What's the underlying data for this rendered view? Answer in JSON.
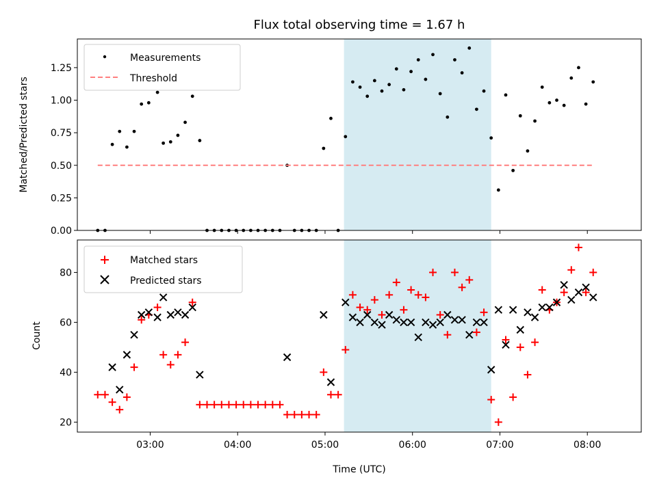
{
  "chart_data": {
    "title": "Flux total observing time = 1.67 h",
    "xlabel": "Time (UTC)",
    "x_ticks": [
      "03:00",
      "04:00",
      "05:00",
      "06:00",
      "07:00",
      "08:00"
    ],
    "x_range": [
      "02:10",
      "08:37"
    ],
    "shaded_interval": {
      "start": "05:13",
      "end": "06:54",
      "color": "#add8e6"
    },
    "panels": [
      {
        "id": "ratio",
        "type": "scatter",
        "ylabel": "Matched/Predicted stars",
        "ylim": [
          0,
          1.47
        ],
        "y_ticks": [
          "0.00",
          "0.25",
          "0.50",
          "0.75",
          "1.00",
          "1.25"
        ],
        "y_tick_values": [
          0,
          0.25,
          0.5,
          0.75,
          1.0,
          1.25
        ],
        "legend_position": "top-left",
        "series": [
          {
            "name": "Measurements",
            "marker": "dot",
            "color": "#000000",
            "points": [
              [
                "02:24",
                0
              ],
              [
                "02:29",
                0
              ],
              [
                "02:34",
                0.66
              ],
              [
                "02:39",
                0.76
              ],
              [
                "02:44",
                0.64
              ],
              [
                "02:49",
                0.76
              ],
              [
                "02:54",
                0.97
              ],
              [
                "02:59",
                0.98
              ],
              [
                "03:05",
                1.06
              ],
              [
                "03:09",
                0.67
              ],
              [
                "03:14",
                0.68
              ],
              [
                "03:19",
                0.73
              ],
              [
                "03:24",
                0.83
              ],
              [
                "03:29",
                1.03
              ],
              [
                "03:34",
                0.69
              ],
              [
                "03:39",
                0
              ],
              [
                "03:44",
                0
              ],
              [
                "03:49",
                0
              ],
              [
                "03:54",
                0
              ],
              [
                "03:59",
                0
              ],
              [
                "04:04",
                0
              ],
              [
                "04:09",
                0
              ],
              [
                "04:14",
                0
              ],
              [
                "04:19",
                0
              ],
              [
                "04:24",
                0
              ],
              [
                "04:29",
                0
              ],
              [
                "04:34",
                0.5
              ],
              [
                "04:39",
                0
              ],
              [
                "04:44",
                0
              ],
              [
                "04:49",
                0
              ],
              [
                "04:54",
                0
              ],
              [
                "04:59",
                0.63
              ],
              [
                "05:04",
                0.86
              ],
              [
                "05:09",
                0
              ],
              [
                "05:14",
                0.72
              ],
              [
                "05:19",
                1.14
              ],
              [
                "05:24",
                1.1
              ],
              [
                "05:29",
                1.03
              ],
              [
                "05:34",
                1.15
              ],
              [
                "05:39",
                1.07
              ],
              [
                "05:44",
                1.12
              ],
              [
                "05:49",
                1.24
              ],
              [
                "05:54",
                1.08
              ],
              [
                "05:59",
                1.22
              ],
              [
                "06:04",
                1.31
              ],
              [
                "06:09",
                1.16
              ],
              [
                "06:14",
                1.35
              ],
              [
                "06:19",
                1.05
              ],
              [
                "06:24",
                0.87
              ],
              [
                "06:29",
                1.31
              ],
              [
                "06:34",
                1.21
              ],
              [
                "06:39",
                1.4
              ],
              [
                "06:44",
                0.93
              ],
              [
                "06:49",
                1.07
              ],
              [
                "06:54",
                0.71
              ],
              [
                "06:59",
                0.31
              ],
              [
                "07:04",
                1.04
              ],
              [
                "07:09",
                0.46
              ],
              [
                "07:14",
                0.88
              ],
              [
                "07:19",
                0.61
              ],
              [
                "07:24",
                0.84
              ],
              [
                "07:29",
                1.1
              ],
              [
                "07:34",
                0.98
              ],
              [
                "07:39",
                1.0
              ],
              [
                "07:44",
                0.96
              ],
              [
                "07:49",
                1.17
              ],
              [
                "07:54",
                1.25
              ],
              [
                "07:59",
                0.97
              ],
              [
                "08:04",
                1.14
              ]
            ]
          },
          {
            "name": "Threshold",
            "style": "dashed-line",
            "color": "#ff7f7f",
            "points": [
              [
                "02:24",
                0.5
              ],
              [
                "08:04",
                0.5
              ]
            ]
          }
        ]
      },
      {
        "id": "counts",
        "type": "scatter",
        "ylabel": "Count",
        "ylim": [
          16,
          93
        ],
        "y_ticks": [
          "20",
          "40",
          "60",
          "80"
        ],
        "y_tick_values": [
          20,
          40,
          60,
          80
        ],
        "legend_position": "top-left",
        "series": [
          {
            "name": "Matched stars",
            "marker": "plus",
            "color": "#ff0000",
            "points": [
              [
                "02:24",
                31
              ],
              [
                "02:29",
                31
              ],
              [
                "02:34",
                28
              ],
              [
                "02:39",
                25
              ],
              [
                "02:44",
                30
              ],
              [
                "02:49",
                42
              ],
              [
                "02:54",
                61
              ],
              [
                "02:59",
                63
              ],
              [
                "03:05",
                66
              ],
              [
                "03:09",
                47
              ],
              [
                "03:14",
                43
              ],
              [
                "03:19",
                47
              ],
              [
                "03:24",
                52
              ],
              [
                "03:29",
                68
              ],
              [
                "03:34",
                27
              ],
              [
                "03:39",
                27
              ],
              [
                "03:44",
                27
              ],
              [
                "03:49",
                27
              ],
              [
                "03:54",
                27
              ],
              [
                "03:59",
                27
              ],
              [
                "04:04",
                27
              ],
              [
                "04:09",
                27
              ],
              [
                "04:14",
                27
              ],
              [
                "04:19",
                27
              ],
              [
                "04:24",
                27
              ],
              [
                "04:29",
                27
              ],
              [
                "04:34",
                23
              ],
              [
                "04:39",
                23
              ],
              [
                "04:44",
                23
              ],
              [
                "04:49",
                23
              ],
              [
                "04:54",
                23
              ],
              [
                "04:59",
                40
              ],
              [
                "05:04",
                31
              ],
              [
                "05:09",
                31
              ],
              [
                "05:14",
                49
              ],
              [
                "05:19",
                71
              ],
              [
                "05:24",
                66
              ],
              [
                "05:29",
                65
              ],
              [
                "05:34",
                69
              ],
              [
                "05:39",
                63
              ],
              [
                "05:44",
                71
              ],
              [
                "05:49",
                76
              ],
              [
                "05:54",
                65
              ],
              [
                "05:59",
                73
              ],
              [
                "06:04",
                71
              ],
              [
                "06:09",
                70
              ],
              [
                "06:14",
                80
              ],
              [
                "06:19",
                63
              ],
              [
                "06:24",
                55
              ],
              [
                "06:29",
                80
              ],
              [
                "06:34",
                74
              ],
              [
                "06:39",
                77
              ],
              [
                "06:44",
                56
              ],
              [
                "06:49",
                64
              ],
              [
                "06:54",
                29
              ],
              [
                "06:59",
                20
              ],
              [
                "07:04",
                53
              ],
              [
                "07:09",
                30
              ],
              [
                "07:14",
                50
              ],
              [
                "07:19",
                39
              ],
              [
                "07:24",
                52
              ],
              [
                "07:29",
                73
              ],
              [
                "07:34",
                65
              ],
              [
                "07:39",
                68
              ],
              [
                "07:44",
                72
              ],
              [
                "07:49",
                81
              ],
              [
                "07:54",
                90
              ],
              [
                "07:59",
                72
              ],
              [
                "08:04",
                80
              ]
            ]
          },
          {
            "name": "Predicted stars",
            "marker": "x",
            "color": "#000000",
            "points": [
              [
                "02:34",
                42
              ],
              [
                "02:39",
                33
              ],
              [
                "02:44",
                47
              ],
              [
                "02:49",
                55
              ],
              [
                "02:54",
                63
              ],
              [
                "02:59",
                64
              ],
              [
                "03:05",
                62
              ],
              [
                "03:09",
                70
              ],
              [
                "03:14",
                63
              ],
              [
                "03:19",
                64
              ],
              [
                "03:24",
                63
              ],
              [
                "03:29",
                66
              ],
              [
                "03:34",
                39
              ],
              [
                "04:34",
                46
              ],
              [
                "04:59",
                63
              ],
              [
                "05:04",
                36
              ],
              [
                "05:14",
                68
              ],
              [
                "05:19",
                62
              ],
              [
                "05:24",
                60
              ],
              [
                "05:29",
                63
              ],
              [
                "05:34",
                60
              ],
              [
                "05:39",
                59
              ],
              [
                "05:44",
                63
              ],
              [
                "05:49",
                61
              ],
              [
                "05:54",
                60
              ],
              [
                "05:59",
                60
              ],
              [
                "06:04",
                54
              ],
              [
                "06:09",
                60
              ],
              [
                "06:14",
                59
              ],
              [
                "06:19",
                60
              ],
              [
                "06:24",
                63
              ],
              [
                "06:29",
                61
              ],
              [
                "06:34",
                61
              ],
              [
                "06:39",
                55
              ],
              [
                "06:44",
                60
              ],
              [
                "06:49",
                60
              ],
              [
                "06:54",
                41
              ],
              [
                "06:59",
                65
              ],
              [
                "07:04",
                51
              ],
              [
                "07:09",
                65
              ],
              [
                "07:14",
                57
              ],
              [
                "07:19",
                64
              ],
              [
                "07:24",
                62
              ],
              [
                "07:29",
                66
              ],
              [
                "07:34",
                66
              ],
              [
                "07:39",
                68
              ],
              [
                "07:44",
                75
              ],
              [
                "07:49",
                69
              ],
              [
                "07:54",
                72
              ],
              [
                "07:59",
                74
              ],
              [
                "08:04",
                70
              ]
            ]
          }
        ]
      }
    ]
  }
}
